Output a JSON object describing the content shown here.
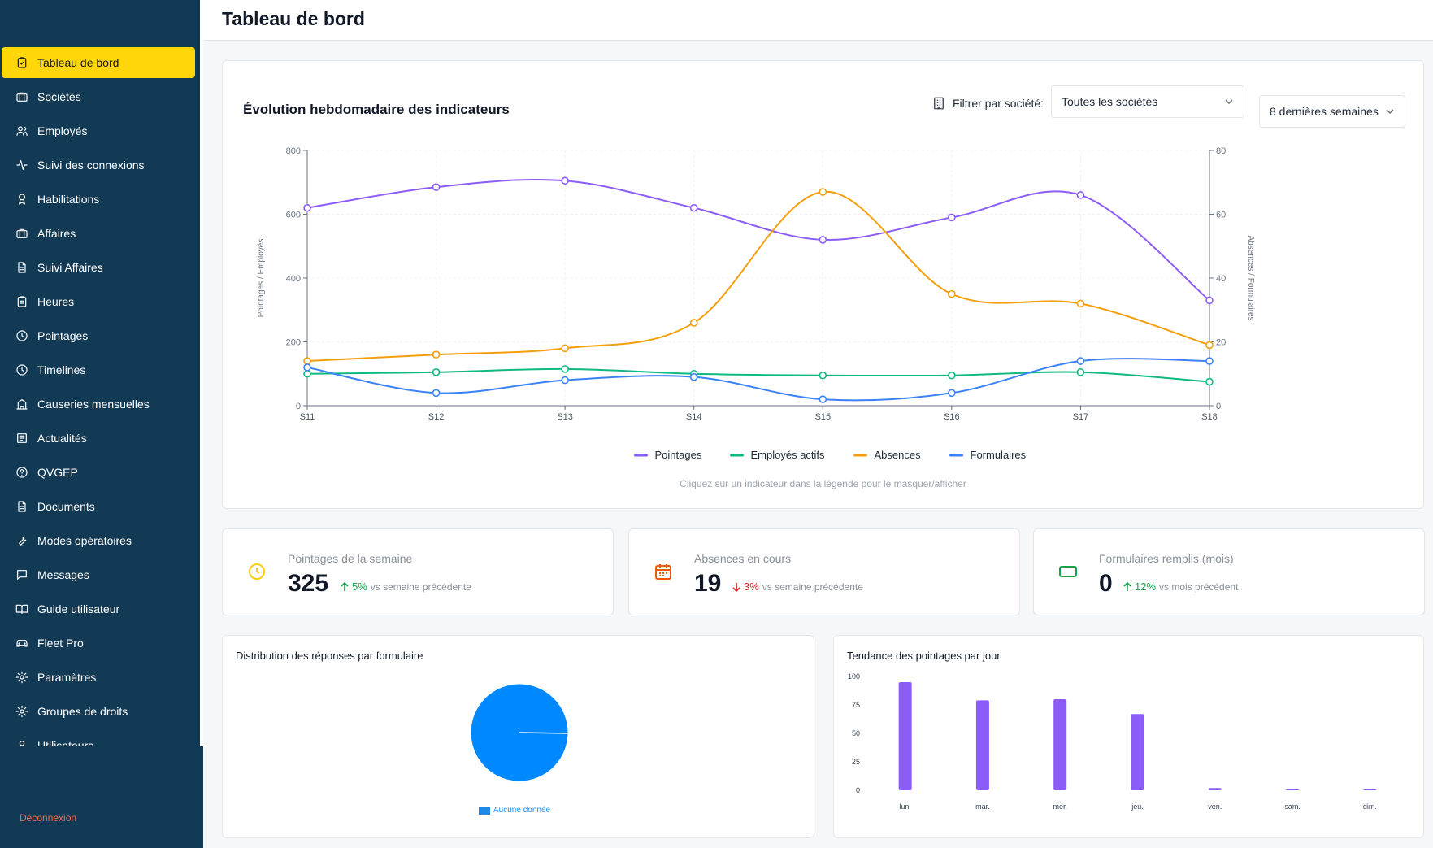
{
  "page": {
    "title": "Tableau de bord"
  },
  "sidebar": {
    "items": [
      {
        "label": "Tableau de bord",
        "icon": "clipboard-check-icon",
        "active": true
      },
      {
        "label": "Sociétés",
        "icon": "briefcase-icon"
      },
      {
        "label": "Employés",
        "icon": "users-icon"
      },
      {
        "label": "Suivi des connexions",
        "icon": "activity-icon"
      },
      {
        "label": "Habilitations",
        "icon": "award-icon"
      },
      {
        "label": "Affaires",
        "icon": "briefcase-icon"
      },
      {
        "label": "Suivi Affaires",
        "icon": "file-text-icon"
      },
      {
        "label": "Heures",
        "icon": "clipboard-icon"
      },
      {
        "label": "Pointages",
        "icon": "clock-icon"
      },
      {
        "label": "Timelines",
        "icon": "clock-icon"
      },
      {
        "label": "Causeries mensuelles",
        "icon": "building-icon"
      },
      {
        "label": "Actualités",
        "icon": "newspaper-icon"
      },
      {
        "label": "QVGEP",
        "icon": "help-circle-icon"
      },
      {
        "label": "Documents",
        "icon": "file-text-icon"
      },
      {
        "label": "Modes opératoires",
        "icon": "wrench-icon"
      },
      {
        "label": "Messages",
        "icon": "message-square-icon"
      },
      {
        "label": "Guide utilisateur",
        "icon": "book-open-icon"
      },
      {
        "label": "Fleet Pro",
        "icon": "car-icon"
      },
      {
        "label": "Paramètres",
        "icon": "settings-icon"
      },
      {
        "label": "Groupes de droits",
        "icon": "settings-icon"
      },
      {
        "label": "Utilisateurs",
        "icon": "user-icon"
      }
    ],
    "logout_label": "Déconnexion"
  },
  "main_chart_card": {
    "title": "Évolution hebdomadaire des indicateurs",
    "filter_label": "Filtrer par société:",
    "company_select": "Toutes les sociétés",
    "period_select": "8 dernières semaines",
    "hint": "Cliquez sur un indicateur dans la légende pour le masquer/afficher"
  },
  "kpis": [
    {
      "label": "Pointages de la semaine",
      "value": "325",
      "trend_direction": "up",
      "trend_pct": "5%",
      "trend_vs": "vs semaine précédente",
      "icon": "clock-icon",
      "color": "#facc15"
    },
    {
      "label": "Absences en cours",
      "value": "19",
      "trend_direction": "down",
      "trend_pct": "3%",
      "trend_vs": "vs semaine précédente",
      "icon": "calendar-icon",
      "color": "#ea580c"
    },
    {
      "label": "Formulaires remplis (mois)",
      "value": "0",
      "trend_direction": "up",
      "trend_pct": "12%",
      "trend_vs": "vs mois précédent",
      "icon": "form-icon",
      "color": "#16a34a"
    }
  ],
  "pie_card": {
    "title": "Distribution des réponses par formulaire",
    "legend": "Aucune donnée"
  },
  "bar_card": {
    "title": "Tendance des pointages par jour"
  },
  "chart_data": [
    {
      "type": "line",
      "title": "Évolution hebdomadaire des indicateurs",
      "x": [
        "S11",
        "S12",
        "S13",
        "S14",
        "S15",
        "S16",
        "S17",
        "S18"
      ],
      "ylabel": "Pointages / Employés",
      "y2label": "Absences / Formulaires",
      "ylim": [
        0,
        800
      ],
      "y2lim": [
        0,
        80
      ],
      "yticks": [
        0,
        200,
        400,
        600,
        800
      ],
      "y2ticks": [
        0,
        20,
        40,
        60,
        80
      ],
      "grid": true,
      "legend_position": "bottom",
      "series": [
        {
          "name": "Pointages",
          "axis": "left",
          "color": "#8b5cf6",
          "values": [
            620,
            685,
            705,
            620,
            520,
            590,
            660,
            330
          ]
        },
        {
          "name": "Employés actifs",
          "axis": "left",
          "color": "#10b981",
          "values": [
            100,
            105,
            115,
            100,
            95,
            95,
            105,
            75
          ]
        },
        {
          "name": "Absences",
          "axis": "right",
          "color": "#f59e0b",
          "values": [
            14,
            16,
            18,
            26,
            67,
            35,
            32,
            19
          ]
        },
        {
          "name": "Formulaires",
          "axis": "right",
          "color": "#3b82f6",
          "values": [
            12,
            4,
            8,
            9,
            2,
            4,
            14,
            14
          ]
        }
      ]
    },
    {
      "type": "pie",
      "title": "Distribution des réponses par formulaire",
      "categories": [
        "Aucune donnée"
      ],
      "values": [
        1
      ],
      "colors": [
        "#0088fe"
      ]
    },
    {
      "type": "bar",
      "title": "Tendance des pointages par jour",
      "categories": [
        "lun.",
        "mar.",
        "mer.",
        "jeu.",
        "ven.",
        "sam.",
        "dim."
      ],
      "values": [
        95,
        79,
        80,
        67,
        2,
        1,
        1
      ],
      "ylim": [
        0,
        100
      ],
      "yticks": [
        0,
        25,
        50,
        75,
        100
      ],
      "color": "#8b5cf6"
    }
  ]
}
